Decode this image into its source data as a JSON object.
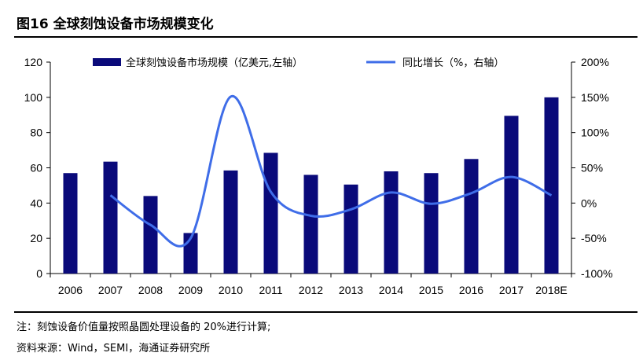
{
  "title": "图16 全球刻蚀设备市场规模变化",
  "notes": {
    "note": "注：刻蚀设备价值量按照晶圆处理设备的 20%进行计算;",
    "source": "资料来源：Wind，SEMI，海通证券研究所"
  },
  "colors": {
    "bar": "#0a0a7a",
    "line": "#3f6de8"
  },
  "chart_data": {
    "type": "bar",
    "categories": [
      "2006",
      "2007",
      "2008",
      "2009",
      "2010",
      "2011",
      "2012",
      "2013",
      "2014",
      "2015",
      "2016",
      "2017",
      "2018E"
    ],
    "series": [
      {
        "name": "全球刻蚀设备市场规模（亿美元,左轴）",
        "type": "bar",
        "axis": "left",
        "values": [
          57,
          63.5,
          44,
          23,
          58.5,
          68.5,
          56,
          50.5,
          58,
          57,
          65,
          89.5,
          100
        ]
      },
      {
        "name": "同比增长（%，右轴）",
        "type": "line",
        "axis": "right",
        "values": [
          null,
          11,
          -31,
          -50,
          151,
          16,
          -18,
          -9,
          15,
          -1,
          14,
          37,
          11
        ]
      }
    ],
    "left_axis": {
      "ylim": [
        0,
        120
      ],
      "ticks": [
        "0",
        "20",
        "40",
        "60",
        "80",
        "100",
        "120"
      ]
    },
    "right_axis": {
      "ylim": [
        -100,
        200
      ],
      "ticks": [
        "-100%",
        "-50%",
        "0%",
        "50%",
        "100%",
        "150%",
        "200%"
      ]
    },
    "legend_position": "top",
    "grid": false
  }
}
